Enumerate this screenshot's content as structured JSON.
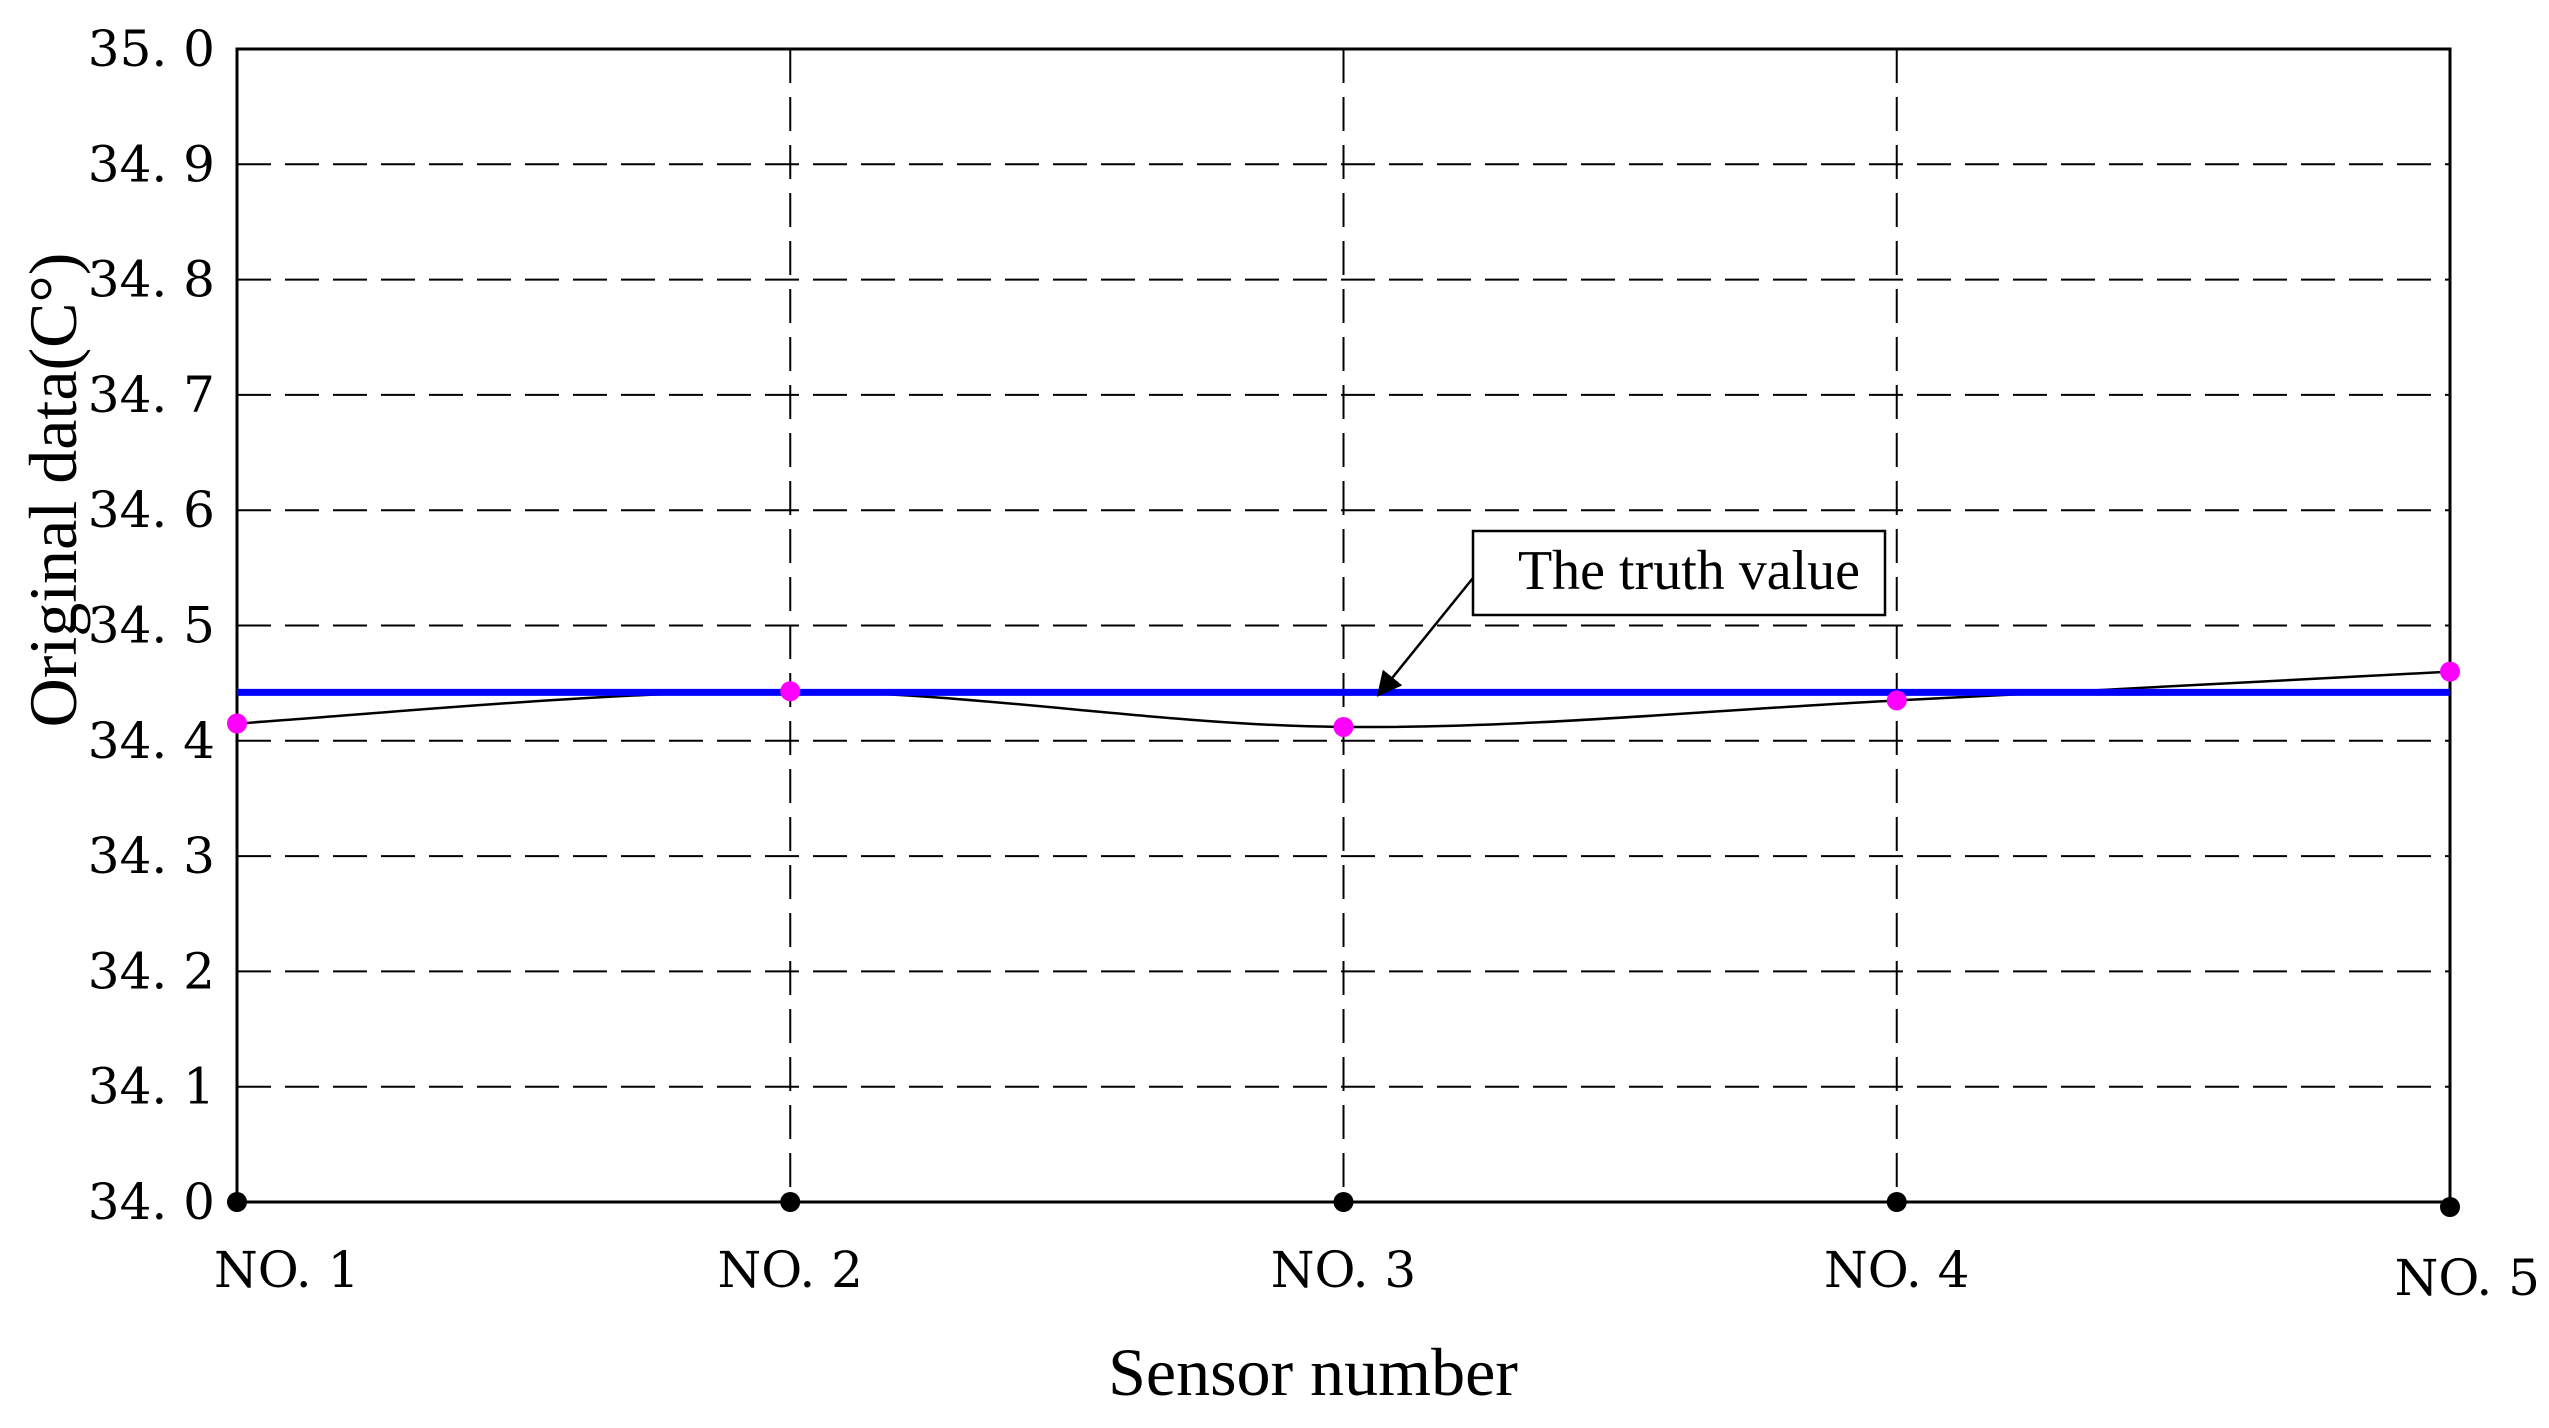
{
  "chart_data": {
    "type": "line",
    "categories": [
      "NO. 1",
      "NO. 2",
      "NO. 3",
      "NO. 4",
      "NO. 5"
    ],
    "xlabel": "Sensor number",
    "ylabel": "Original data(C°)",
    "ylim": [
      34.0,
      35.0
    ],
    "yticks": [
      "34. 0",
      "34. 1",
      "34. 2",
      "34. 3",
      "34. 4",
      "34. 5",
      "34. 6",
      "34. 7",
      "34. 8",
      "34. 9",
      "35. 0"
    ],
    "grid": true,
    "series": [
      {
        "values": [
          34.415,
          34.443,
          34.412,
          34.435,
          34.46
        ],
        "line_color": "#000000",
        "marker_color": "#ff00ff"
      }
    ],
    "reference_line": {
      "value": 34.442,
      "color": "#0000ff"
    },
    "baseline_markers": {
      "value": 34.0,
      "color": "#000000"
    },
    "annotation": {
      "text": "The truth value"
    }
  }
}
